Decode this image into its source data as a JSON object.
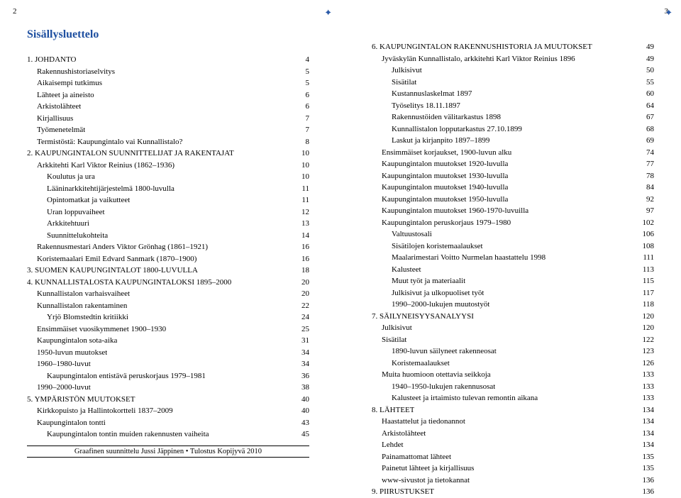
{
  "pageLeftNum": "2",
  "pageRightNum": "3",
  "title": "Sisällysluettelo",
  "footer": "Graafinen suunnittelu Jussi Jäppinen • Tulostus Kopijyvä 2010",
  "left": [
    {
      "lvl": 0,
      "label": "1. JOHDANTO",
      "num": "4"
    },
    {
      "lvl": 1,
      "label": "Rakennushistoriaselvitys",
      "num": "5"
    },
    {
      "lvl": 1,
      "label": "Aikaisempi tutkimus",
      "num": "5"
    },
    {
      "lvl": 1,
      "label": "Lähteet ja aineisto",
      "num": "6"
    },
    {
      "lvl": 1,
      "label": "Arkistolähteet",
      "num": "6"
    },
    {
      "lvl": 1,
      "label": "Kirjallisuus",
      "num": "7"
    },
    {
      "lvl": 1,
      "label": "Työmenetelmät",
      "num": "7"
    },
    {
      "lvl": 1,
      "label": "Termistöstä: Kaupungintalo vai Kunnallistalo?",
      "num": "8"
    },
    {
      "lvl": 0,
      "label": "2. KAUPUNGINTALON SUUNNITTELIJAT JA RAKENTAJAT",
      "num": "10"
    },
    {
      "lvl": 1,
      "label": "Arkkitehti Karl Viktor Reinius (1862–1936)",
      "num": "10"
    },
    {
      "lvl": 2,
      "label": "Koulutus ja ura",
      "num": "10"
    },
    {
      "lvl": 2,
      "label": "Lääninarkkitehtijärjestelmä 1800-luvulla",
      "num": "11"
    },
    {
      "lvl": 2,
      "label": "Opintomatkat ja vaikutteet",
      "num": "11"
    },
    {
      "lvl": 2,
      "label": "Uran loppuvaiheet",
      "num": "12"
    },
    {
      "lvl": 2,
      "label": "Arkkitehtuuri",
      "num": "13"
    },
    {
      "lvl": 2,
      "label": "Suunnittelukohteita",
      "num": "14"
    },
    {
      "lvl": 1,
      "label": "Rakennusmestari Anders Viktor Grönhag (1861–1921)",
      "num": "16"
    },
    {
      "lvl": 1,
      "label": "Koristemaalari Emil Edvard Sanmark (1870–1900)",
      "num": "16"
    },
    {
      "lvl": 0,
      "label": "3. SUOMEN KAUPUNGINTALOT 1800-LUVULLA",
      "num": "18"
    },
    {
      "lvl": 0,
      "label": "4. KUNNALLISTALOSTA KAUPUNGINTALOKSI 1895–2000",
      "num": "20"
    },
    {
      "lvl": 1,
      "label": "Kunnallistalon varhaisvaiheet",
      "num": "20"
    },
    {
      "lvl": 1,
      "label": "Kunnallistalon rakentaminen",
      "num": "22"
    },
    {
      "lvl": 2,
      "label": "Yrjö Blomstedtin kritiikki",
      "num": "24"
    },
    {
      "lvl": 1,
      "label": "Ensimmäiset vuosikymmenet 1900–1930",
      "num": "25"
    },
    {
      "lvl": 1,
      "label": "Kaupungintalon sota-aika",
      "num": "31"
    },
    {
      "lvl": 1,
      "label": "1950-luvun muutokset",
      "num": "34"
    },
    {
      "lvl": 1,
      "label": "1960–1980-luvut",
      "num": "34"
    },
    {
      "lvl": 2,
      "label": "Kaupungintalon entistävä peruskorjaus 1979–1981",
      "num": "36"
    },
    {
      "lvl": 1,
      "label": "1990–2000-luvut",
      "num": "38"
    },
    {
      "lvl": 0,
      "label": "5. YMPÄRISTÖN MUUTOKSET",
      "num": "40"
    },
    {
      "lvl": 1,
      "label": "Kirkkopuisto ja Hallintokortteli 1837–2009",
      "num": "40"
    },
    {
      "lvl": 1,
      "label": "Kaupungintalon tontti",
      "num": "43"
    },
    {
      "lvl": 2,
      "label": "Kaupungintalon tontin muiden rakennusten vaiheita",
      "num": "45"
    }
  ],
  "right": [
    {
      "lvl": 0,
      "label": "6. KAUPUNGINTALON RAKENNUSHISTORIA JA MUUTOKSET",
      "num": "49"
    },
    {
      "lvl": 1,
      "label": "Jyväskylän Kunnallistalo, arkkitehti Karl Viktor Reinius 1896",
      "num": "49"
    },
    {
      "lvl": 2,
      "label": "Julkisivut",
      "num": "50"
    },
    {
      "lvl": 2,
      "label": "Sisätilat",
      "num": "55"
    },
    {
      "lvl": 2,
      "label": "Kustannuslaskelmat 1897",
      "num": "60"
    },
    {
      "lvl": 2,
      "label": "Työselitys 18.11.1897",
      "num": "64"
    },
    {
      "lvl": 2,
      "label": "Rakennustöiden välitarkastus 1898",
      "num": "67"
    },
    {
      "lvl": 2,
      "label": "Kunnallistalon lopputarkastus 27.10.1899",
      "num": "68"
    },
    {
      "lvl": 2,
      "label": "Laskut  ja kirjanpito 1897–1899",
      "num": "69"
    },
    {
      "lvl": 1,
      "label": "Ensimmäiset korjaukset, 1900-luvun alku",
      "num": "74"
    },
    {
      "lvl": 1,
      "label": "Kaupungintalon muutokset 1920-luvulla",
      "num": "77"
    },
    {
      "lvl": 1,
      "label": "Kaupungintalon muutokset 1930-luvulla",
      "num": "78"
    },
    {
      "lvl": 1,
      "label": "Kaupungintalon muutokset 1940-luvulla",
      "num": "84"
    },
    {
      "lvl": 1,
      "label": "Kaupungintalon muutokset 1950-luvulla",
      "num": "92"
    },
    {
      "lvl": 1,
      "label": "Kaupungintalon muutokset 1960-1970-luvuilla",
      "num": "97"
    },
    {
      "lvl": 1,
      "label": "Kaupungintalon peruskorjaus 1979–1980",
      "num": "102"
    },
    {
      "lvl": 2,
      "label": "Valtuustosali",
      "num": "106"
    },
    {
      "lvl": 2,
      "label": "Sisätilojen koristemaalaukset",
      "num": "108"
    },
    {
      "lvl": 2,
      "label": "Maalarimestari Voitto Nurmelan haastattelu 1998",
      "num": "111"
    },
    {
      "lvl": 2,
      "label": "Kalusteet",
      "num": "113"
    },
    {
      "lvl": 2,
      "label": "Muut työt ja materiaalit",
      "num": "115"
    },
    {
      "lvl": 2,
      "label": "Julkisivut ja ulkopuoliset työt",
      "num": "117"
    },
    {
      "lvl": 2,
      "label": "1990–2000-lukujen muutostyöt",
      "num": "118"
    },
    {
      "lvl": 0,
      "label": "7. SÄILYNEISYYSANALYYSI",
      "num": "120"
    },
    {
      "lvl": 1,
      "label": "Julkisivut",
      "num": "120"
    },
    {
      "lvl": 1,
      "label": "Sisätilat",
      "num": "122"
    },
    {
      "lvl": 2,
      "label": "1890-luvun säilyneet rakenneosat",
      "num": "123"
    },
    {
      "lvl": 2,
      "label": "Koristemaalaukset",
      "num": "126"
    },
    {
      "lvl": 1,
      "label": "Muita huomioon otettavia seikkoja",
      "num": "133"
    },
    {
      "lvl": 2,
      "label": "1940–1950-lukujen rakennusosat",
      "num": "133"
    },
    {
      "lvl": 2,
      "label": "Kalusteet ja irtaimisto tulevan remontin aikana",
      "num": "133"
    },
    {
      "lvl": 0,
      "label": "8. LÄHTEET",
      "num": "134"
    },
    {
      "lvl": 1,
      "label": "Haastattelut ja tiedonannot",
      "num": "134"
    },
    {
      "lvl": 1,
      "label": "Arkistolähteet",
      "num": "134"
    },
    {
      "lvl": 1,
      "label": "Lehdet",
      "num": "134"
    },
    {
      "lvl": 1,
      "label": "Painamattomat lähteet",
      "num": "135"
    },
    {
      "lvl": 1,
      "label": "Painetut lähteet ja kirjallisuus",
      "num": "135"
    },
    {
      "lvl": 1,
      "label": "www-sivustot ja tietokannat",
      "num": "136"
    },
    {
      "lvl": 0,
      "label": "9. PIIRUSTUKSET",
      "num": "136"
    }
  ]
}
